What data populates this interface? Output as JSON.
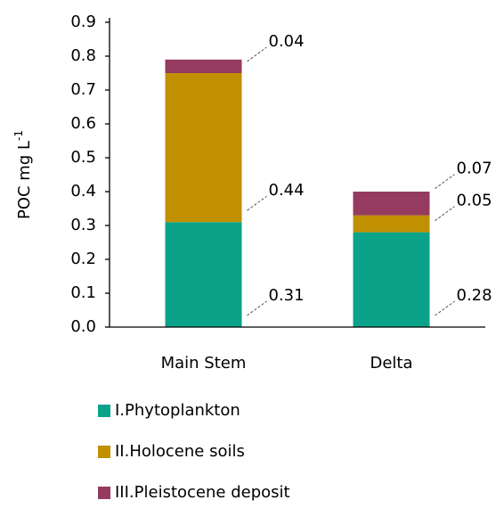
{
  "chart_data": {
    "type": "stacked_bar",
    "ylabel": {
      "text": "POC mg L",
      "superscript": "-1"
    },
    "categories": [
      "Main Stem",
      "Delta"
    ],
    "series": [
      {
        "name": "I.Phytoplankton",
        "color": "#0aa38a",
        "values": [
          0.31,
          0.28
        ]
      },
      {
        "name": "II.Holocene soils",
        "color": "#c09000",
        "values": [
          0.44,
          0.05
        ]
      },
      {
        "name": "III.Pleistocene deposit",
        "color": "#953b5f",
        "values": [
          0.04,
          0.07
        ]
      }
    ],
    "ylim": [
      0,
      0.9
    ],
    "yticks": [
      {
        "value": 0,
        "label": "0.0"
      },
      0.1,
      0.2,
      0.3,
      0.4,
      0.5,
      0.6,
      0.7,
      0.8,
      0.9
    ],
    "grid": false,
    "legend": "bottom"
  }
}
